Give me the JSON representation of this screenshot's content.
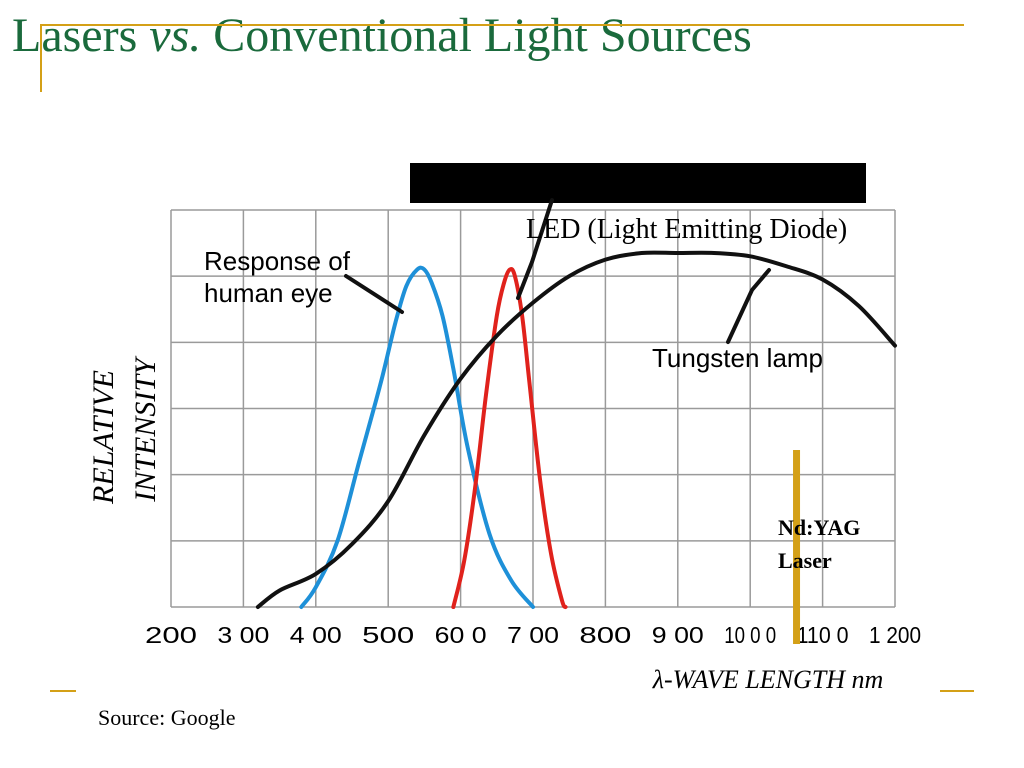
{
  "slide": {
    "title_part1": "Lasers ",
    "title_italic": "vs.",
    "title_part2": " Conventional Light Sources",
    "source": "Source: Google",
    "accent_color": "#d4a017",
    "title_color": "#1a6a3c"
  },
  "chart_data": {
    "type": "line",
    "title": "",
    "xlabel": "λ-WAVE LENGTH nm",
    "ylabel_line1": "RELATIVE",
    "ylabel_line2": "INTENSITY",
    "xlim": [
      200,
      1200
    ],
    "ylim": [
      0,
      6
    ],
    "x_ticks": [
      200,
      300,
      400,
      500,
      600,
      700,
      800,
      900,
      1000,
      1100,
      1200
    ],
    "x_tick_labels": [
      "200",
      "3 00",
      "4 00",
      "500",
      "60 0",
      "7 00",
      "800",
      "9 00",
      "10 0 0",
      "110 0",
      "1 200"
    ],
    "grid": true,
    "series": [
      {
        "name": "Response of human eye",
        "color": "#1e90d8",
        "x": [
          380,
          400,
          430,
          460,
          490,
          510,
          525,
          540,
          550,
          560,
          575,
          590,
          610,
          640,
          670,
          700
        ],
        "y": [
          0,
          0.3,
          1.0,
          2.2,
          3.4,
          4.3,
          4.85,
          5.1,
          5.1,
          4.9,
          4.4,
          3.6,
          2.4,
          1.1,
          0.4,
          0
        ]
      },
      {
        "name": "LED (Light Emitting Diode)",
        "color": "#e0221c",
        "x": [
          590,
          605,
          620,
          635,
          650,
          660,
          668,
          675,
          685,
          695,
          710,
          725,
          740,
          745
        ],
        "y": [
          0,
          0.7,
          1.8,
          3.2,
          4.4,
          4.9,
          5.1,
          5.0,
          4.4,
          3.4,
          1.9,
          0.8,
          0.1,
          0
        ]
      },
      {
        "name": "Tungsten lamp",
        "color": "#111111",
        "x": [
          320,
          350,
          400,
          450,
          500,
          550,
          600,
          650,
          700,
          750,
          800,
          850,
          900,
          950,
          1000,
          1050,
          1100,
          1150,
          1200
        ],
        "y": [
          0,
          0.25,
          0.5,
          0.95,
          1.6,
          2.6,
          3.45,
          4.1,
          4.6,
          5.0,
          5.25,
          5.35,
          5.35,
          5.35,
          5.3,
          5.15,
          4.95,
          4.55,
          3.95
        ]
      }
    ],
    "annotations": [
      {
        "text_lines": [
          "Response of",
          "human eye"
        ],
        "target_series": 0
      },
      {
        "text_lines": [
          "LED (Light Emitting Diode)"
        ],
        "target_series": 1
      },
      {
        "text_lines": [
          "Tungsten lamp"
        ],
        "target_series": 2
      },
      {
        "text_lines": [
          "Nd:YAG",
          "Laser"
        ],
        "marker_x": 1064,
        "marker_color": "#d4a017"
      }
    ]
  }
}
